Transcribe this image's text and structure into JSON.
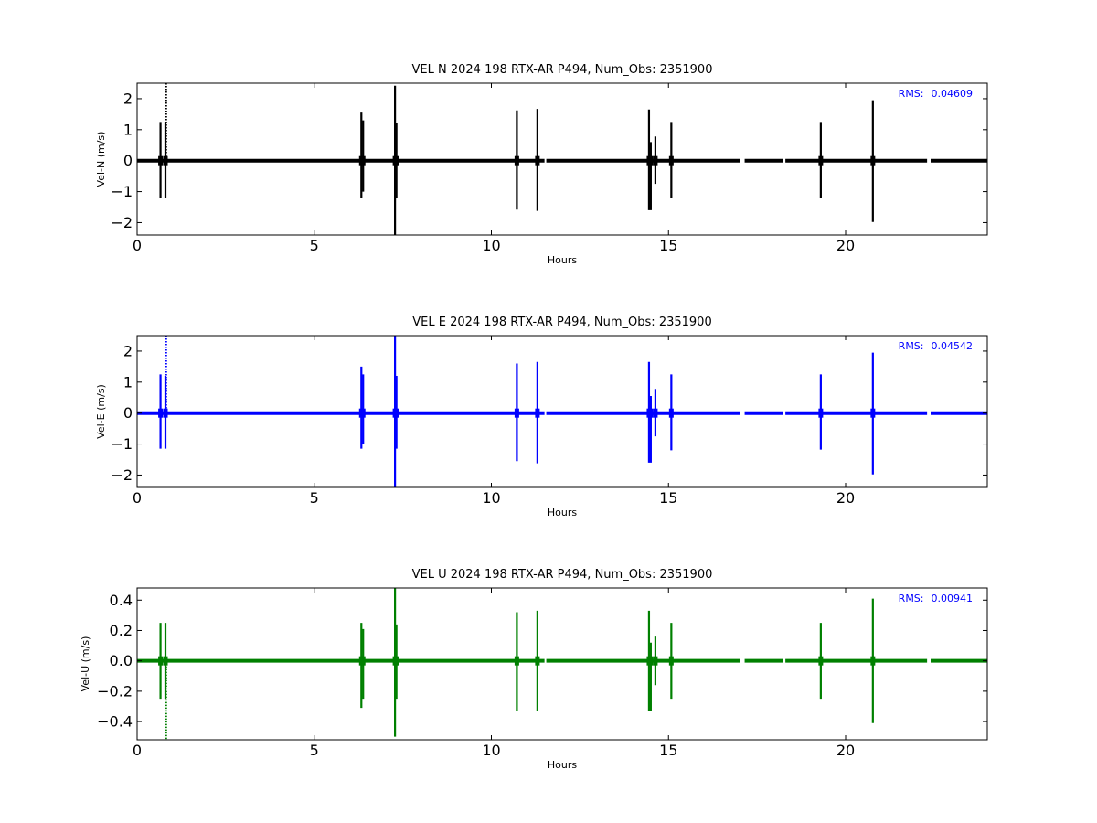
{
  "figure": {
    "background": "#ffffff"
  },
  "chart_data": [
    {
      "type": "line",
      "title": "VEL N 2024 198 RTX-AR  P494, Num_Obs: 2351900",
      "xlabel": "Hours",
      "ylabel": "Vel-N (m/s)",
      "xlim": [
        0,
        24
      ],
      "ylim": [
        -2.4,
        2.5
      ],
      "xticks": [
        0,
        5,
        10,
        15,
        20
      ],
      "yticks": [
        -2,
        -1,
        0,
        1,
        2
      ],
      "ytick_labels": [
        "−2",
        "−1",
        "0",
        "1",
        "2"
      ],
      "color": "#000000",
      "annotation": {
        "label": "RMS:",
        "value": "0.04609",
        "color": "#0000ff"
      },
      "series": [
        {
          "values_summary": "dense velocity samples near 0 m/s",
          "spikes": [
            {
              "x": 0.66,
              "low": -1.2,
              "high": 1.25
            },
            {
              "x": 0.8,
              "low": -1.2,
              "high": 1.25
            },
            {
              "x": 0.82,
              "low": 0,
              "high": 2.5
            },
            {
              "x": 6.33,
              "low": -1.2,
              "high": 1.55
            },
            {
              "x": 6.38,
              "low": -1.0,
              "high": 1.3
            },
            {
              "x": 7.28,
              "low": -2.4,
              "high": 2.42
            },
            {
              "x": 7.32,
              "low": -1.2,
              "high": 1.2
            },
            {
              "x": 10.72,
              "low": -1.58,
              "high": 1.62
            },
            {
              "x": 11.3,
              "low": -1.62,
              "high": 1.67
            },
            {
              "x": 14.45,
              "low": -1.6,
              "high": 1.65
            },
            {
              "x": 14.5,
              "low": -1.6,
              "high": 0.6
            },
            {
              "x": 14.63,
              "low": -0.75,
              "high": 0.78
            },
            {
              "x": 15.08,
              "low": -1.22,
              "high": 1.25
            },
            {
              "x": 19.3,
              "low": -1.22,
              "high": 1.25
            },
            {
              "x": 20.77,
              "low": -1.98,
              "high": 1.95
            }
          ],
          "gaps": [
            [
              11.5,
              11.55
            ],
            [
              17.02,
              17.15
            ],
            [
              18.23,
              18.3
            ],
            [
              22.3,
              22.4
            ]
          ]
        }
      ]
    },
    {
      "type": "line",
      "title": "VEL E 2024 198 RTX-AR  P494, Num_Obs: 2351900",
      "xlabel": "Hours",
      "ylabel": "Vel-E (m/s)",
      "xlim": [
        0,
        24
      ],
      "ylim": [
        -2.4,
        2.5
      ],
      "xticks": [
        0,
        5,
        10,
        15,
        20
      ],
      "yticks": [
        -2,
        -1,
        0,
        1,
        2
      ],
      "ytick_labels": [
        "−2",
        "−1",
        "0",
        "1",
        "2"
      ],
      "color": "#0000ff",
      "annotation": {
        "label": "RMS:",
        "value": "0.04542",
        "color": "#0000ff"
      },
      "series": [
        {
          "values_summary": "dense velocity samples near 0 m/s",
          "spikes": [
            {
              "x": 0.66,
              "low": -1.15,
              "high": 1.25
            },
            {
              "x": 0.8,
              "low": -1.15,
              "high": 1.2
            },
            {
              "x": 0.82,
              "low": 0,
              "high": 2.5
            },
            {
              "x": 6.33,
              "low": -1.15,
              "high": 1.5
            },
            {
              "x": 6.38,
              "low": -1.0,
              "high": 1.25
            },
            {
              "x": 7.28,
              "low": -2.4,
              "high": 2.5
            },
            {
              "x": 7.32,
              "low": -1.15,
              "high": 1.2
            },
            {
              "x": 10.72,
              "low": -1.55,
              "high": 1.6
            },
            {
              "x": 11.3,
              "low": -1.62,
              "high": 1.65
            },
            {
              "x": 14.45,
              "low": -1.6,
              "high": 1.65
            },
            {
              "x": 14.5,
              "low": -1.6,
              "high": 0.55
            },
            {
              "x": 14.63,
              "low": -0.75,
              "high": 0.78
            },
            {
              "x": 15.08,
              "low": -1.2,
              "high": 1.25
            },
            {
              "x": 19.3,
              "low": -1.18,
              "high": 1.25
            },
            {
              "x": 20.77,
              "low": -1.98,
              "high": 1.95
            }
          ],
          "gaps": [
            [
              11.5,
              11.55
            ],
            [
              17.02,
              17.15
            ],
            [
              18.23,
              18.3
            ],
            [
              22.3,
              22.4
            ]
          ]
        }
      ]
    },
    {
      "type": "line",
      "title": "VEL U 2024 198 RTX-AR  P494, Num_Obs: 2351900",
      "xlabel": "Hours",
      "ylabel": "Vel-U (m/s)",
      "xlim": [
        0,
        24
      ],
      "ylim": [
        -0.52,
        0.48
      ],
      "xticks": [
        0,
        5,
        10,
        15,
        20
      ],
      "yticks": [
        -0.4,
        -0.2,
        0.0,
        0.2,
        0.4
      ],
      "ytick_labels": [
        "−0.4",
        "−0.2",
        "0.0",
        "0.2",
        "0.4"
      ],
      "color": "#008000",
      "annotation": {
        "label": "RMS:",
        "value": "0.00941",
        "color": "#0000ff"
      },
      "series": [
        {
          "values_summary": "dense velocity samples near 0 m/s",
          "spikes": [
            {
              "x": 0.66,
              "low": -0.25,
              "high": 0.25
            },
            {
              "x": 0.8,
              "low": -0.25,
              "high": 0.25
            },
            {
              "x": 0.82,
              "low": -0.52,
              "high": 0
            },
            {
              "x": 6.33,
              "low": -0.31,
              "high": 0.25
            },
            {
              "x": 6.38,
              "low": -0.25,
              "high": 0.21
            },
            {
              "x": 7.28,
              "low": -0.5,
              "high": 0.48
            },
            {
              "x": 7.32,
              "low": -0.25,
              "high": 0.24
            },
            {
              "x": 10.72,
              "low": -0.33,
              "high": 0.32
            },
            {
              "x": 11.3,
              "low": -0.33,
              "high": 0.33
            },
            {
              "x": 14.45,
              "low": -0.33,
              "high": 0.33
            },
            {
              "x": 14.5,
              "low": -0.33,
              "high": 0.12
            },
            {
              "x": 14.63,
              "low": -0.16,
              "high": 0.16
            },
            {
              "x": 15.08,
              "low": -0.25,
              "high": 0.25
            },
            {
              "x": 19.3,
              "low": -0.25,
              "high": 0.25
            },
            {
              "x": 20.77,
              "low": -0.41,
              "high": 0.41
            }
          ],
          "gaps": [
            [
              11.5,
              11.55
            ],
            [
              17.02,
              17.15
            ],
            [
              18.23,
              18.3
            ],
            [
              22.3,
              22.4
            ]
          ]
        }
      ]
    }
  ]
}
